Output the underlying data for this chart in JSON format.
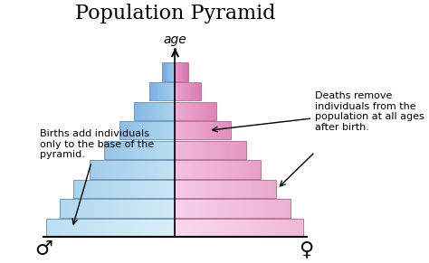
{
  "title": "Population Pyramid",
  "age_label": "age",
  "male_symbol": "♂",
  "female_symbol": "♀",
  "annotation_births": "Births add individuals\nonly to the base of the\npyramid.",
  "annotation_deaths": "Deaths remove\nindividuals from the\npopulation at all ages\nafter birth.",
  "num_bars": 9,
  "bar_widths": [
    9.0,
    8.1,
    7.1,
    6.0,
    5.0,
    3.9,
    2.9,
    1.8,
    0.9
  ],
  "bar_height": 0.82,
  "bar_gap": 0.05,
  "male_colors": [
    "#b8dff0",
    "#b0d8ee",
    "#a8d2ec",
    "#9fcbea",
    "#96c4e8",
    "#8dbde6",
    "#84b6e4",
    "#7baee2",
    "#72a6e0"
  ],
  "female_colors": [
    "#f0b8d8",
    "#edb0d2",
    "#eaa8cc",
    "#e79fc6",
    "#e496c0",
    "#e18dba",
    "#de84b4",
    "#db7bae",
    "#d872a8"
  ],
  "male_center_colors": [
    "#d8eef8",
    "#d0eaf6",
    "#c8e6f4",
    "#c0e2f2",
    "#b8def0",
    "#b0d8ee",
    "#a8d4ec",
    "#a0d0ea",
    "#98cce8"
  ],
  "female_center_colors": [
    "#f8d8ee",
    "#f6d0ea",
    "#f4c8e6",
    "#f2c0e2",
    "#f0b8de",
    "#eeb0d8",
    "#eca8d4",
    "#eaa0d0",
    "#e898cc"
  ],
  "edge_color": "#8899aa",
  "background_color": "#ffffff",
  "title_fontsize": 16,
  "age_fontsize": 10,
  "symbol_fontsize": 16,
  "annot_fontsize": 8
}
